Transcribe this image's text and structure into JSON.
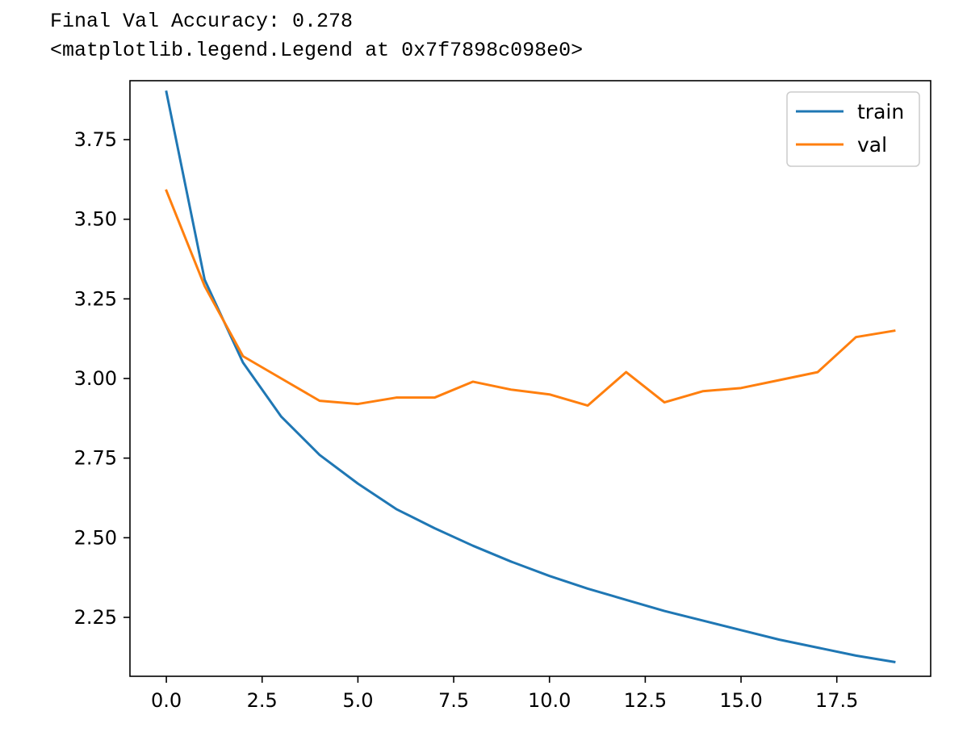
{
  "output": {
    "lines": [
      "Final Val Accuracy: 0.278",
      "<matplotlib.legend.Legend at 0x7f7898c098e0>"
    ]
  },
  "chart_data": {
    "type": "line",
    "title": "",
    "xlabel": "",
    "ylabel": "",
    "xlim": [
      -0.95,
      19.95
    ],
    "ylim": [
      2.065,
      3.935
    ],
    "xticks": [
      0.0,
      2.5,
      5.0,
      7.5,
      10.0,
      12.5,
      15.0,
      17.5
    ],
    "xtick_labels": [
      "0.0",
      "2.5",
      "5.0",
      "7.5",
      "10.0",
      "12.5",
      "15.0",
      "17.5"
    ],
    "yticks": [
      2.25,
      2.5,
      2.75,
      3.0,
      3.25,
      3.5,
      3.75
    ],
    "ytick_labels": [
      "2.25",
      "2.50",
      "2.75",
      "3.00",
      "3.25",
      "3.50",
      "3.75"
    ],
    "grid": false,
    "legend": "upper right",
    "x": [
      0,
      1,
      2,
      3,
      4,
      5,
      6,
      7,
      8,
      9,
      10,
      11,
      12,
      13,
      14,
      15,
      16,
      17,
      18,
      19
    ],
    "series": [
      {
        "name": "train",
        "color": "#1f77b4",
        "values": [
          3.9,
          3.31,
          3.05,
          2.88,
          2.76,
          2.67,
          2.59,
          2.53,
          2.475,
          2.425,
          2.38,
          2.34,
          2.305,
          2.27,
          2.24,
          2.21,
          2.18,
          2.155,
          2.13,
          2.11
        ]
      },
      {
        "name": "val",
        "color": "#ff7f0e",
        "values": [
          3.59,
          3.29,
          3.07,
          3.0,
          2.93,
          2.92,
          2.94,
          2.94,
          2.99,
          2.965,
          2.95,
          2.915,
          3.02,
          2.925,
          2.96,
          2.97,
          2.995,
          3.02,
          3.13,
          3.15
        ]
      }
    ]
  }
}
